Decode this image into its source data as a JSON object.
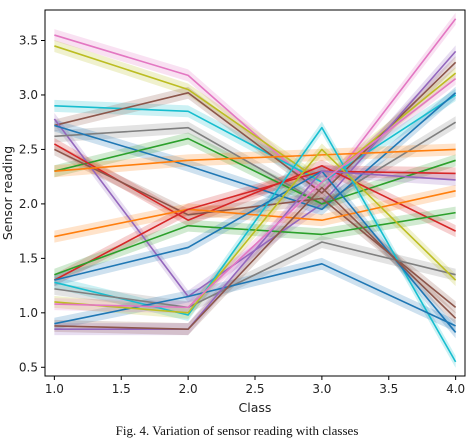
{
  "caption": "Fig. 4. Variation of sensor reading with classes",
  "chart_data": {
    "type": "line",
    "xlabel": "Class",
    "ylabel": "Sensor reading",
    "xlim": [
      0.93,
      4.07
    ],
    "ylim": [
      0.42,
      3.78
    ],
    "xticks": [
      "1.0",
      "1.5",
      "2.0",
      "2.5",
      "3.0",
      "3.5",
      "4.0"
    ],
    "yticks": [
      "0.5",
      "1.0",
      "1.5",
      "2.0",
      "2.5",
      "3.0",
      "3.5"
    ],
    "legend": "none",
    "grid": false,
    "x": [
      1,
      2,
      3,
      4
    ],
    "series": [
      {
        "color": "#e377c2",
        "values": [
          3.55,
          3.18,
          2.1,
          3.7
        ]
      },
      {
        "color": "#bcbd22",
        "values": [
          3.45,
          3.05,
          2.2,
          3.2
        ]
      },
      {
        "color": "#17becf",
        "values": [
          2.9,
          2.85,
          2.2,
          3.0
        ]
      },
      {
        "color": "#8c564b",
        "values": [
          2.72,
          3.02,
          2.1,
          3.3
        ]
      },
      {
        "color": "#9467bd",
        "values": [
          2.78,
          1.15,
          2.0,
          3.4
        ]
      },
      {
        "color": "#7f7f7f",
        "values": [
          2.62,
          2.7,
          2.0,
          2.75
        ]
      },
      {
        "color": "#1f77b4",
        "values": [
          2.72,
          2.35,
          1.95,
          3.02
        ]
      },
      {
        "color": "#2ca02c",
        "values": [
          2.3,
          2.6,
          2.0,
          2.4
        ]
      },
      {
        "color": "#d62728",
        "values": [
          2.55,
          1.85,
          2.35,
          1.75
        ]
      },
      {
        "color": "#8c564b",
        "values": [
          2.5,
          1.9,
          2.05,
          1.05
        ]
      },
      {
        "color": "#ff7f0e",
        "values": [
          2.3,
          2.4,
          2.45,
          2.5
        ]
      },
      {
        "color": "#ff7f0e",
        "values": [
          1.7,
          1.95,
          1.85,
          2.12
        ]
      },
      {
        "color": "#d62728",
        "values": [
          1.3,
          1.95,
          2.3,
          2.28
        ]
      },
      {
        "color": "#2ca02c",
        "values": [
          1.35,
          1.8,
          1.72,
          1.92
        ]
      },
      {
        "color": "#17becf",
        "values": [
          1.28,
          0.98,
          2.7,
          0.55
        ]
      },
      {
        "color": "#1f77b4",
        "values": [
          1.3,
          1.6,
          2.3,
          0.82
        ]
      },
      {
        "color": "#7f7f7f",
        "values": [
          1.22,
          1.05,
          1.65,
          1.35
        ]
      },
      {
        "color": "#1f77b4",
        "values": [
          0.9,
          1.15,
          1.45,
          0.88
        ]
      },
      {
        "color": "#bcbd22",
        "values": [
          1.1,
          1.0,
          2.5,
          1.3
        ]
      },
      {
        "color": "#9467bd",
        "values": [
          0.85,
          0.85,
          2.3,
          2.22
        ]
      },
      {
        "color": "#e377c2",
        "values": [
          1.08,
          1.05,
          2.2,
          3.15
        ]
      },
      {
        "color": "#8c564b",
        "values": [
          0.88,
          0.85,
          2.15,
          0.95
        ]
      }
    ]
  }
}
